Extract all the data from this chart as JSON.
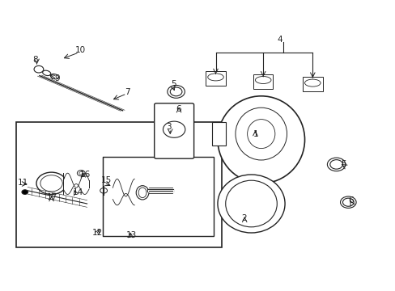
{
  "bg_color": "#ffffff",
  "fig_width": 4.89,
  "fig_height": 3.6,
  "dpi": 100,
  "color": "#222222"
}
